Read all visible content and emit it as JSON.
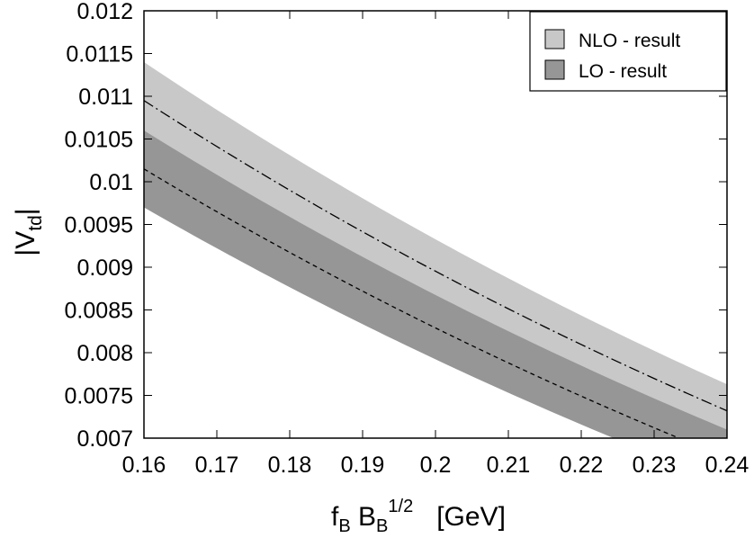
{
  "chart_data": {
    "type": "area",
    "xlabel": {
      "main": "f",
      "sub1": "B",
      "mid": " B",
      "sub2": "B",
      "sup": "1/2",
      "unit": "[GeV]"
    },
    "ylabel": {
      "main": "|V",
      "sub": "td",
      "end": "|"
    },
    "xlim": [
      0.16,
      0.24
    ],
    "ylim": [
      0.007,
      0.012
    ],
    "xticks": [
      {
        "value": 0.16,
        "label": "0.16"
      },
      {
        "value": 0.17,
        "label": "0.17"
      },
      {
        "value": 0.18,
        "label": "0.18"
      },
      {
        "value": 0.19,
        "label": "0.19"
      },
      {
        "value": 0.2,
        "label": "0.2"
      },
      {
        "value": 0.21,
        "label": "0.21"
      },
      {
        "value": 0.22,
        "label": "0.22"
      },
      {
        "value": 0.23,
        "label": "0.23"
      },
      {
        "value": 0.24,
        "label": "0.24"
      }
    ],
    "yticks": [
      {
        "value": 0.007,
        "label": "0.007"
      },
      {
        "value": 0.0075,
        "label": "0.0075"
      },
      {
        "value": 0.008,
        "label": "0.008"
      },
      {
        "value": 0.0085,
        "label": "0.0085"
      },
      {
        "value": 0.009,
        "label": "0.009"
      },
      {
        "value": 0.0095,
        "label": "0.0095"
      },
      {
        "value": 0.01,
        "label": "0.01"
      },
      {
        "value": 0.0105,
        "label": "0.0105"
      },
      {
        "value": 0.011,
        "label": "0.011"
      },
      {
        "value": 0.0115,
        "label": "0.0115"
      },
      {
        "value": 0.012,
        "label": "0.012"
      }
    ],
    "legend_position": "top-right",
    "grid": false,
    "bands": [
      {
        "name": "NLO - result",
        "color": "#c8c8c8",
        "x": [
          0.16,
          0.24
        ],
        "lower": [
          0.01015,
          0.00685
        ],
        "upper": [
          0.0114,
          0.00763
        ],
        "center": [
          0.01095,
          0.00732
        ],
        "center_style": "dash-dot"
      },
      {
        "name": "LO - result",
        "color": "#969696",
        "x": [
          0.16,
          0.24
        ],
        "lower": [
          0.0097,
          0.00647
        ],
        "upper": [
          0.0106,
          0.0071
        ],
        "center": [
          0.01015,
          0.00677
        ],
        "center_style": "dashed"
      }
    ]
  }
}
